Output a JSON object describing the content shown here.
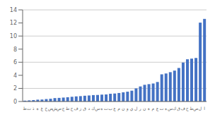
{
  "chart_data": {
    "type": "bar",
    "categories": [
      "ظ",
      "ث",
      "ذ",
      "ة",
      "غ",
      "خ",
      "ض",
      "ش",
      "ص",
      "ج",
      "ط",
      "ح",
      "ف",
      "ز",
      "ق",
      "د",
      "ك",
      "س",
      "ه",
      "ت",
      "ب",
      "ع",
      "م",
      "ن",
      "و",
      "ي",
      "ل",
      "ر",
      "ن",
      "ة",
      "م",
      "ع",
      "ت",
      "ه",
      "س",
      "ك",
      "ق",
      "ف",
      "ح",
      "ط",
      "ص",
      "ل",
      "ا"
    ],
    "values": [
      0.13,
      0.17,
      0.22,
      0.28,
      0.3,
      0.37,
      0.42,
      0.52,
      0.55,
      0.6,
      0.65,
      0.72,
      0.78,
      0.82,
      0.88,
      0.92,
      0.98,
      1.0,
      1.05,
      1.08,
      1.18,
      1.22,
      1.3,
      1.4,
      1.5,
      1.65,
      2.0,
      2.3,
      2.55,
      2.65,
      2.75,
      2.98,
      4.15,
      4.28,
      4.48,
      4.72,
      5.12,
      5.95,
      6.45,
      6.55,
      6.65,
      12.05,
      12.62
    ],
    "color": "#4472C4",
    "ylim": [
      0,
      14
    ],
    "yticks": [
      0,
      2,
      4,
      6,
      8,
      10,
      12,
      14
    ],
    "grid": true
  }
}
